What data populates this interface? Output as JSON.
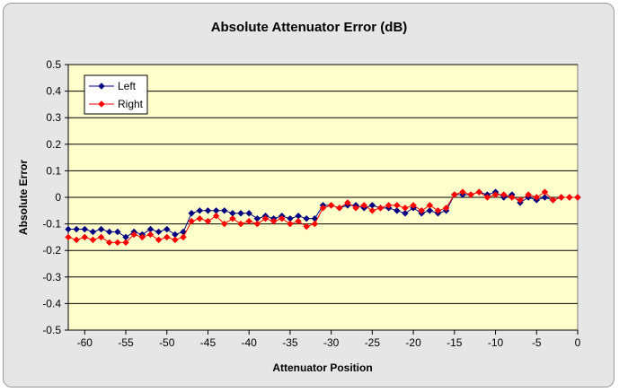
{
  "chart_data": {
    "type": "line",
    "title": "Absolute Attenuator Error (dB)",
    "xlabel": "Attenuator Position",
    "ylabel": "Absolute Error",
    "xlim": [
      -62,
      0
    ],
    "ylim": [
      -0.5,
      0.5
    ],
    "x_ticks": [
      -60,
      -55,
      -50,
      -45,
      -40,
      -35,
      -30,
      -25,
      -20,
      -15,
      -10,
      -5,
      0
    ],
    "y_ticks": [
      "0.5",
      "0.4",
      "0.3",
      "0.2",
      "0.1",
      "0",
      "-0.1",
      "-0.2",
      "-0.3",
      "-0.4",
      "-0.5"
    ],
    "grid": "horizontal",
    "legend_position": "top-left",
    "plot_background": "#ffffcc",
    "x": [
      -62,
      -61,
      -60,
      -59,
      -58,
      -57,
      -56,
      -55,
      -54,
      -53,
      -52,
      -51,
      -50,
      -49,
      -48,
      -47,
      -46,
      -45,
      -44,
      -43,
      -42,
      -41,
      -40,
      -39,
      -38,
      -37,
      -36,
      -35,
      -34,
      -33,
      -32,
      -31,
      -30,
      -29,
      -28,
      -27,
      -26,
      -25,
      -24,
      -23,
      -22,
      -21,
      -20,
      -19,
      -18,
      -17,
      -16,
      -15,
      -14,
      -13,
      -12,
      -11,
      -10,
      -9,
      -8,
      -7,
      -6,
      -5,
      -4,
      -3,
      -2,
      -1,
      0
    ],
    "series": [
      {
        "name": "Left",
        "color": "#000080",
        "marker": "diamond",
        "values": [
          -0.12,
          -0.12,
          -0.12,
          -0.13,
          -0.12,
          -0.13,
          -0.13,
          -0.15,
          -0.13,
          -0.14,
          -0.12,
          -0.13,
          -0.12,
          -0.14,
          -0.13,
          -0.06,
          -0.05,
          -0.05,
          -0.05,
          -0.05,
          -0.06,
          -0.06,
          -0.06,
          -0.08,
          -0.07,
          -0.08,
          -0.07,
          -0.08,
          -0.07,
          -0.08,
          -0.08,
          -0.03,
          -0.03,
          -0.04,
          -0.03,
          -0.03,
          -0.04,
          -0.03,
          -0.04,
          -0.04,
          -0.05,
          -0.06,
          -0.04,
          -0.06,
          -0.05,
          -0.06,
          -0.05,
          0.01,
          0.01,
          0.01,
          0.02,
          0.01,
          0.02,
          0.0,
          0.01,
          -0.02,
          0.0,
          -0.01,
          0.0,
          -0.01,
          0.0,
          0.0,
          0.0
        ]
      },
      {
        "name": "Right",
        "color": "#ff0000",
        "marker": "diamond",
        "values": [
          -0.15,
          -0.16,
          -0.15,
          -0.16,
          -0.15,
          -0.17,
          -0.17,
          -0.17,
          -0.14,
          -0.15,
          -0.14,
          -0.16,
          -0.15,
          -0.16,
          -0.15,
          -0.09,
          -0.08,
          -0.09,
          -0.07,
          -0.1,
          -0.08,
          -0.1,
          -0.09,
          -0.1,
          -0.08,
          -0.09,
          -0.08,
          -0.1,
          -0.09,
          -0.11,
          -0.1,
          -0.04,
          -0.03,
          -0.04,
          -0.02,
          -0.04,
          -0.03,
          -0.05,
          -0.04,
          -0.03,
          -0.03,
          -0.04,
          -0.03,
          -0.05,
          -0.03,
          -0.05,
          -0.04,
          0.01,
          0.02,
          0.01,
          0.02,
          0.0,
          0.01,
          0.01,
          0.0,
          -0.01,
          0.01,
          0.0,
          0.02,
          -0.01,
          0.0,
          0.0,
          0.0
        ]
      }
    ]
  }
}
